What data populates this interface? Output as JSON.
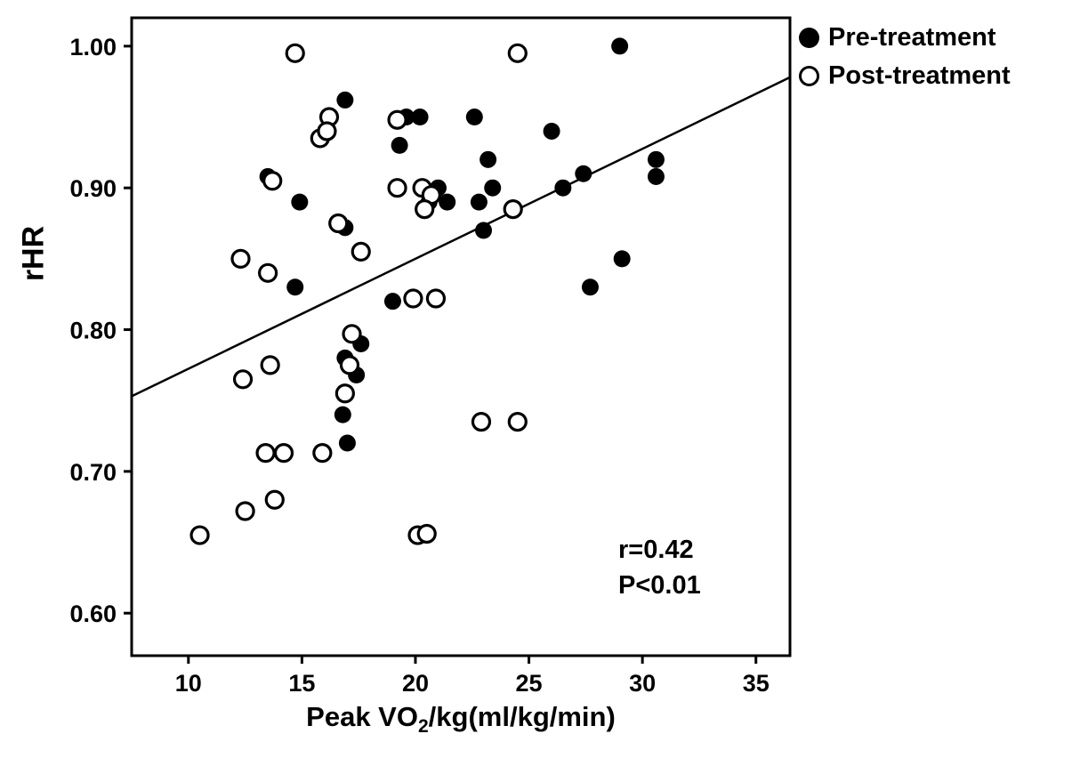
{
  "chart_data": {
    "type": "scatter",
    "title": "",
    "xlabel": "Peak VO2/kg(ml/kg/min)",
    "xlabel_parts": {
      "pre": "Peak VO",
      "sub": "2",
      "post": "/kg(ml/kg/min)"
    },
    "ylabel": "rHR",
    "xlim": [
      7.5,
      36.5
    ],
    "ylim": [
      0.57,
      1.02
    ],
    "x_ticks": [
      10,
      15,
      20,
      25,
      30,
      35
    ],
    "x_tick_labels": [
      "10",
      "15",
      "20",
      "25",
      "30",
      "35"
    ],
    "y_ticks": [
      0.6,
      0.7,
      0.8,
      0.9,
      1.0
    ],
    "y_tick_labels": [
      "0.60",
      "0.70",
      "0.80",
      "0.90",
      "1.00"
    ],
    "grid": false,
    "legend_position": "top-right-outside",
    "annotation": {
      "lines": [
        "r=0.42",
        "P<0.01"
      ],
      "x": 28.2,
      "y": 0.645
    },
    "regression_line": {
      "x1": 7.5,
      "y1": 0.753,
      "x2": 36.5,
      "y2": 0.978
    },
    "colors": {
      "marker": "#000000",
      "line": "#000000",
      "background": "#ffffff"
    },
    "series": [
      {
        "name": "Pre-treatment",
        "marker": "filled",
        "points": [
          [
            16.9,
            0.962
          ],
          [
            29.0,
            1.0
          ],
          [
            19.6,
            0.95
          ],
          [
            20.2,
            0.95
          ],
          [
            22.6,
            0.95
          ],
          [
            26.0,
            0.94
          ],
          [
            19.3,
            0.93
          ],
          [
            23.2,
            0.92
          ],
          [
            30.6,
            0.92
          ],
          [
            30.6,
            0.908
          ],
          [
            27.4,
            0.91
          ],
          [
            13.5,
            0.908
          ],
          [
            14.9,
            0.89
          ],
          [
            21.0,
            0.9
          ],
          [
            23.4,
            0.9
          ],
          [
            26.5,
            0.9
          ],
          [
            20.6,
            0.89
          ],
          [
            21.4,
            0.89
          ],
          [
            22.8,
            0.89
          ],
          [
            16.9,
            0.872
          ],
          [
            23.0,
            0.87
          ],
          [
            29.1,
            0.85
          ],
          [
            14.7,
            0.83
          ],
          [
            27.7,
            0.83
          ],
          [
            19.0,
            0.82
          ],
          [
            17.6,
            0.79
          ],
          [
            16.9,
            0.78
          ],
          [
            17.4,
            0.768
          ],
          [
            16.8,
            0.74
          ],
          [
            17.0,
            0.72
          ]
        ]
      },
      {
        "name": "Post-treatment",
        "marker": "open",
        "points": [
          [
            14.7,
            0.995
          ],
          [
            24.5,
            0.995
          ],
          [
            16.2,
            0.95
          ],
          [
            19.2,
            0.948
          ],
          [
            15.8,
            0.935
          ],
          [
            16.1,
            0.94
          ],
          [
            13.7,
            0.905
          ],
          [
            19.2,
            0.9
          ],
          [
            20.3,
            0.9
          ],
          [
            20.7,
            0.895
          ],
          [
            20.4,
            0.885
          ],
          [
            24.3,
            0.885
          ],
          [
            16.6,
            0.875
          ],
          [
            17.6,
            0.855
          ],
          [
            12.3,
            0.85
          ],
          [
            13.5,
            0.84
          ],
          [
            19.9,
            0.822
          ],
          [
            20.9,
            0.822
          ],
          [
            17.2,
            0.797
          ],
          [
            17.1,
            0.775
          ],
          [
            13.6,
            0.775
          ],
          [
            12.4,
            0.765
          ],
          [
            16.9,
            0.755
          ],
          [
            22.9,
            0.735
          ],
          [
            24.5,
            0.735
          ],
          [
            13.4,
            0.713
          ],
          [
            14.2,
            0.713
          ],
          [
            15.9,
            0.713
          ],
          [
            13.8,
            0.68
          ],
          [
            12.5,
            0.672
          ],
          [
            10.5,
            0.655
          ],
          [
            20.1,
            0.655
          ],
          [
            20.5,
            0.656
          ]
        ]
      }
    ]
  }
}
